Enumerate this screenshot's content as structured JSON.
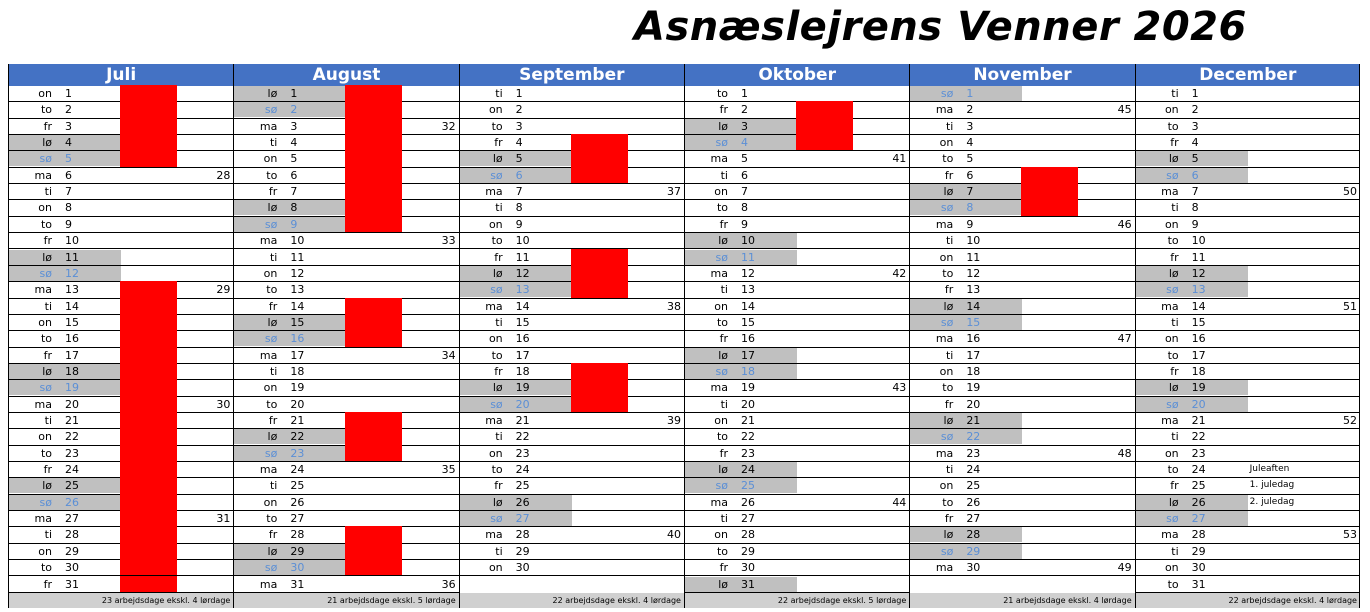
{
  "title": "Asnæslejrens Venner 2026",
  "months": [
    {
      "name": "Juli",
      "footer": "23 arbejdsdage ekskl. 4 lørdage",
      "days": [
        {
          "wd": "on",
          "d": "1",
          "red": true
        },
        {
          "wd": "to",
          "d": "2",
          "red": true
        },
        {
          "wd": "fr",
          "d": "3",
          "red": true
        },
        {
          "wd": "lø",
          "d": "4",
          "red": true
        },
        {
          "wd": "sø",
          "d": "5",
          "red": true
        },
        {
          "wd": "ma",
          "d": "6",
          "wk": "28"
        },
        {
          "wd": "ti",
          "d": "7"
        },
        {
          "wd": "on",
          "d": "8"
        },
        {
          "wd": "to",
          "d": "9"
        },
        {
          "wd": "fr",
          "d": "10"
        },
        {
          "wd": "lø",
          "d": "11"
        },
        {
          "wd": "sø",
          "d": "12"
        },
        {
          "wd": "ma",
          "d": "13",
          "wk": "29",
          "red": true
        },
        {
          "wd": "ti",
          "d": "14",
          "red": true
        },
        {
          "wd": "on",
          "d": "15",
          "red": true
        },
        {
          "wd": "to",
          "d": "16",
          "red": true
        },
        {
          "wd": "fr",
          "d": "17",
          "red": true
        },
        {
          "wd": "lø",
          "d": "18",
          "red": true
        },
        {
          "wd": "sø",
          "d": "19",
          "red": true
        },
        {
          "wd": "ma",
          "d": "20",
          "wk": "30",
          "red": true
        },
        {
          "wd": "ti",
          "d": "21",
          "red": true
        },
        {
          "wd": "on",
          "d": "22",
          "red": true
        },
        {
          "wd": "to",
          "d": "23",
          "red": true
        },
        {
          "wd": "fr",
          "d": "24",
          "red": true
        },
        {
          "wd": "lø",
          "d": "25",
          "red": true
        },
        {
          "wd": "sø",
          "d": "26",
          "red": true
        },
        {
          "wd": "ma",
          "d": "27",
          "wk": "31",
          "red": true
        },
        {
          "wd": "ti",
          "d": "28",
          "red": true
        },
        {
          "wd": "on",
          "d": "29",
          "red": true
        },
        {
          "wd": "to",
          "d": "30",
          "red": true
        },
        {
          "wd": "fr",
          "d": "31",
          "red": true
        }
      ]
    },
    {
      "name": "August",
      "footer": "21 arbejdsdage ekskl. 5 lørdage",
      "days": [
        {
          "wd": "lø",
          "d": "1",
          "red": true
        },
        {
          "wd": "sø",
          "d": "2",
          "red": true
        },
        {
          "wd": "ma",
          "d": "3",
          "wk": "32",
          "red": true
        },
        {
          "wd": "ti",
          "d": "4",
          "red": true
        },
        {
          "wd": "on",
          "d": "5",
          "red": true
        },
        {
          "wd": "to",
          "d": "6",
          "red": true
        },
        {
          "wd": "fr",
          "d": "7",
          "red": true
        },
        {
          "wd": "lø",
          "d": "8",
          "red": true
        },
        {
          "wd": "sø",
          "d": "9",
          "red": true
        },
        {
          "wd": "ma",
          "d": "10",
          "wk": "33"
        },
        {
          "wd": "ti",
          "d": "11"
        },
        {
          "wd": "on",
          "d": "12"
        },
        {
          "wd": "to",
          "d": "13"
        },
        {
          "wd": "fr",
          "d": "14",
          "red": true
        },
        {
          "wd": "lø",
          "d": "15",
          "red": true
        },
        {
          "wd": "sø",
          "d": "16",
          "red": true
        },
        {
          "wd": "ma",
          "d": "17",
          "wk": "34"
        },
        {
          "wd": "ti",
          "d": "18"
        },
        {
          "wd": "on",
          "d": "19"
        },
        {
          "wd": "to",
          "d": "20"
        },
        {
          "wd": "fr",
          "d": "21",
          "red": true
        },
        {
          "wd": "lø",
          "d": "22",
          "red": true
        },
        {
          "wd": "sø",
          "d": "23",
          "red": true
        },
        {
          "wd": "ma",
          "d": "24",
          "wk": "35"
        },
        {
          "wd": "ti",
          "d": "25"
        },
        {
          "wd": "on",
          "d": "26"
        },
        {
          "wd": "to",
          "d": "27"
        },
        {
          "wd": "fr",
          "d": "28",
          "red": true
        },
        {
          "wd": "lø",
          "d": "29",
          "red": true
        },
        {
          "wd": "sø",
          "d": "30",
          "red": true
        },
        {
          "wd": "ma",
          "d": "31",
          "wk": "36"
        }
      ]
    },
    {
      "name": "September",
      "footer": "22 arbejdsdage ekskl. 4 lørdage",
      "days": [
        {
          "wd": "ti",
          "d": "1"
        },
        {
          "wd": "on",
          "d": "2"
        },
        {
          "wd": "to",
          "d": "3"
        },
        {
          "wd": "fr",
          "d": "4",
          "red": true
        },
        {
          "wd": "lø",
          "d": "5",
          "red": true
        },
        {
          "wd": "sø",
          "d": "6",
          "red": true
        },
        {
          "wd": "ma",
          "d": "7",
          "wk": "37"
        },
        {
          "wd": "ti",
          "d": "8"
        },
        {
          "wd": "on",
          "d": "9"
        },
        {
          "wd": "to",
          "d": "10"
        },
        {
          "wd": "fr",
          "d": "11",
          "red": true
        },
        {
          "wd": "lø",
          "d": "12",
          "red": true
        },
        {
          "wd": "sø",
          "d": "13",
          "red": true
        },
        {
          "wd": "ma",
          "d": "14",
          "wk": "38"
        },
        {
          "wd": "ti",
          "d": "15"
        },
        {
          "wd": "on",
          "d": "16"
        },
        {
          "wd": "to",
          "d": "17"
        },
        {
          "wd": "fr",
          "d": "18",
          "red": true
        },
        {
          "wd": "lø",
          "d": "19",
          "red": true
        },
        {
          "wd": "sø",
          "d": "20",
          "red": true
        },
        {
          "wd": "ma",
          "d": "21",
          "wk": "39"
        },
        {
          "wd": "ti",
          "d": "22"
        },
        {
          "wd": "on",
          "d": "23"
        },
        {
          "wd": "to",
          "d": "24"
        },
        {
          "wd": "fr",
          "d": "25"
        },
        {
          "wd": "lø",
          "d": "26"
        },
        {
          "wd": "sø",
          "d": "27"
        },
        {
          "wd": "ma",
          "d": "28",
          "wk": "40"
        },
        {
          "wd": "ti",
          "d": "29"
        },
        {
          "wd": "on",
          "d": "30"
        }
      ]
    },
    {
      "name": "Oktober",
      "footer": "22 arbejdsdage ekskl. 5 lørdage",
      "days": [
        {
          "wd": "to",
          "d": "1"
        },
        {
          "wd": "fr",
          "d": "2",
          "red": true
        },
        {
          "wd": "lø",
          "d": "3",
          "red": true
        },
        {
          "wd": "sø",
          "d": "4",
          "red": true
        },
        {
          "wd": "ma",
          "d": "5",
          "wk": "41"
        },
        {
          "wd": "ti",
          "d": "6"
        },
        {
          "wd": "on",
          "d": "7"
        },
        {
          "wd": "to",
          "d": "8"
        },
        {
          "wd": "fr",
          "d": "9"
        },
        {
          "wd": "lø",
          "d": "10"
        },
        {
          "wd": "sø",
          "d": "11"
        },
        {
          "wd": "ma",
          "d": "12",
          "wk": "42"
        },
        {
          "wd": "ti",
          "d": "13"
        },
        {
          "wd": "on",
          "d": "14"
        },
        {
          "wd": "to",
          "d": "15"
        },
        {
          "wd": "fr",
          "d": "16"
        },
        {
          "wd": "lø",
          "d": "17"
        },
        {
          "wd": "sø",
          "d": "18"
        },
        {
          "wd": "ma",
          "d": "19",
          "wk": "43"
        },
        {
          "wd": "ti",
          "d": "20"
        },
        {
          "wd": "on",
          "d": "21"
        },
        {
          "wd": "to",
          "d": "22"
        },
        {
          "wd": "fr",
          "d": "23"
        },
        {
          "wd": "lø",
          "d": "24"
        },
        {
          "wd": "sø",
          "d": "25"
        },
        {
          "wd": "ma",
          "d": "26",
          "wk": "44"
        },
        {
          "wd": "ti",
          "d": "27"
        },
        {
          "wd": "on",
          "d": "28"
        },
        {
          "wd": "to",
          "d": "29"
        },
        {
          "wd": "fr",
          "d": "30"
        },
        {
          "wd": "lø",
          "d": "31"
        }
      ]
    },
    {
      "name": "November",
      "footer": "21 arbejdsdage ekskl. 4 lørdage",
      "days": [
        {
          "wd": "sø",
          "d": "1"
        },
        {
          "wd": "ma",
          "d": "2",
          "wk": "45"
        },
        {
          "wd": "ti",
          "d": "3"
        },
        {
          "wd": "on",
          "d": "4"
        },
        {
          "wd": "to",
          "d": "5"
        },
        {
          "wd": "fr",
          "d": "6",
          "red": true
        },
        {
          "wd": "lø",
          "d": "7",
          "red": true
        },
        {
          "wd": "sø",
          "d": "8",
          "red": true
        },
        {
          "wd": "ma",
          "d": "9",
          "wk": "46"
        },
        {
          "wd": "ti",
          "d": "10"
        },
        {
          "wd": "on",
          "d": "11"
        },
        {
          "wd": "to",
          "d": "12"
        },
        {
          "wd": "fr",
          "d": "13"
        },
        {
          "wd": "lø",
          "d": "14"
        },
        {
          "wd": "sø",
          "d": "15"
        },
        {
          "wd": "ma",
          "d": "16",
          "wk": "47"
        },
        {
          "wd": "ti",
          "d": "17"
        },
        {
          "wd": "on",
          "d": "18"
        },
        {
          "wd": "to",
          "d": "19"
        },
        {
          "wd": "fr",
          "d": "20"
        },
        {
          "wd": "lø",
          "d": "21"
        },
        {
          "wd": "sø",
          "d": "22"
        },
        {
          "wd": "ma",
          "d": "23",
          "wk": "48"
        },
        {
          "wd": "ti",
          "d": "24"
        },
        {
          "wd": "on",
          "d": "25"
        },
        {
          "wd": "to",
          "d": "26"
        },
        {
          "wd": "fr",
          "d": "27"
        },
        {
          "wd": "lø",
          "d": "28"
        },
        {
          "wd": "sø",
          "d": "29"
        },
        {
          "wd": "ma",
          "d": "30",
          "wk": "49"
        }
      ]
    },
    {
      "name": "December",
      "footer": "22 arbejdsdage ekskl. 4 lørdage",
      "days": [
        {
          "wd": "ti",
          "d": "1"
        },
        {
          "wd": "on",
          "d": "2"
        },
        {
          "wd": "to",
          "d": "3"
        },
        {
          "wd": "fr",
          "d": "4"
        },
        {
          "wd": "lø",
          "d": "5"
        },
        {
          "wd": "sø",
          "d": "6"
        },
        {
          "wd": "ma",
          "d": "7",
          "wk": "50"
        },
        {
          "wd": "ti",
          "d": "8"
        },
        {
          "wd": "on",
          "d": "9"
        },
        {
          "wd": "to",
          "d": "10"
        },
        {
          "wd": "fr",
          "d": "11"
        },
        {
          "wd": "lø",
          "d": "12"
        },
        {
          "wd": "sø",
          "d": "13"
        },
        {
          "wd": "ma",
          "d": "14",
          "wk": "51"
        },
        {
          "wd": "ti",
          "d": "15"
        },
        {
          "wd": "on",
          "d": "16"
        },
        {
          "wd": "to",
          "d": "17"
        },
        {
          "wd": "fr",
          "d": "18"
        },
        {
          "wd": "lø",
          "d": "19"
        },
        {
          "wd": "sø",
          "d": "20"
        },
        {
          "wd": "ma",
          "d": "21",
          "wk": "52"
        },
        {
          "wd": "ti",
          "d": "22"
        },
        {
          "wd": "on",
          "d": "23"
        },
        {
          "wd": "to",
          "d": "24",
          "note": "Juleaften"
        },
        {
          "wd": "fr",
          "d": "25",
          "note": "1. juledag"
        },
        {
          "wd": "lø",
          "d": "26",
          "note": "2. juledag"
        },
        {
          "wd": "sø",
          "d": "27"
        },
        {
          "wd": "ma",
          "d": "28",
          "wk": "53"
        },
        {
          "wd": "ti",
          "d": "29"
        },
        {
          "wd": "on",
          "d": "30"
        },
        {
          "wd": "to",
          "d": "31"
        }
      ]
    }
  ]
}
